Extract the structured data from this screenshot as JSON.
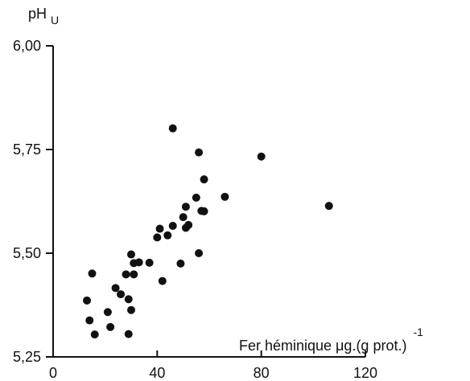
{
  "chart_data": {
    "type": "scatter",
    "title": "",
    "xlabel": "Fer héminique μg.(g prot.)",
    "xlabel_superscript": "-1",
    "ylabel": "pH",
    "ylabel_subscript": "U",
    "xlim": [
      0,
      120
    ],
    "ylim": [
      5.25,
      6.0
    ],
    "x_ticks": [
      0,
      40,
      80,
      120
    ],
    "x_tick_labels": [
      "0",
      "40",
      "80",
      "120"
    ],
    "y_ticks": [
      5.25,
      5.5,
      5.75,
      6.0
    ],
    "y_tick_labels": [
      "5,25",
      "5,50",
      "5,75",
      "6,00"
    ],
    "grid": false,
    "legend": "none",
    "point_color": "#111111",
    "series": [
      {
        "x": [
          13,
          14,
          15,
          16,
          21,
          22,
          24,
          26,
          28,
          29,
          29,
          30,
          30,
          31,
          31,
          33,
          37,
          40,
          41,
          42,
          44,
          46,
          46,
          49,
          50,
          51,
          51,
          52,
          55,
          56,
          56,
          57,
          58,
          58,
          66,
          80,
          106
        ],
        "y": [
          5.386,
          5.338,
          5.451,
          5.304,
          5.358,
          5.322,
          5.416,
          5.401,
          5.449,
          5.389,
          5.305,
          5.363,
          5.497,
          5.449,
          5.476,
          5.478,
          5.477,
          5.538,
          5.559,
          5.433,
          5.543,
          5.801,
          5.566,
          5.475,
          5.587,
          5.561,
          5.612,
          5.568,
          5.634,
          5.5,
          5.743,
          5.602,
          5.678,
          5.601,
          5.636,
          5.733,
          5.614
        ]
      }
    ]
  }
}
